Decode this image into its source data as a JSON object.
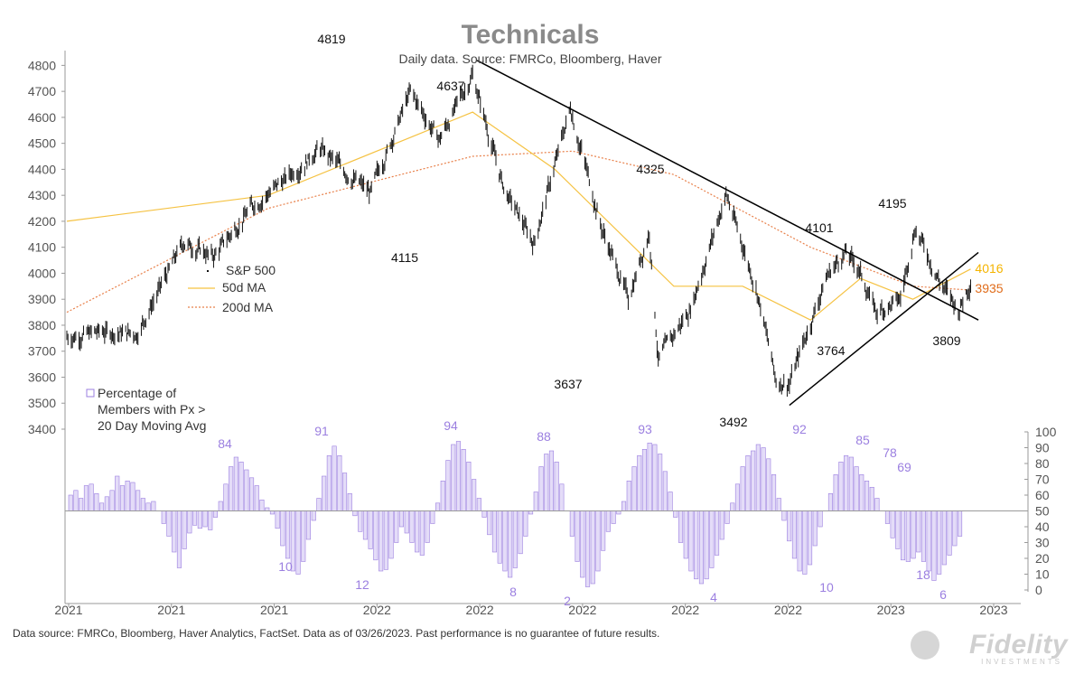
{
  "header": {
    "title": "Technicals",
    "subtitle": "Daily data.  Source: FMRCo, Bloomberg, Haver"
  },
  "footer": {
    "source_note": "Data source: FMRCo, Bloomberg, Haver Analytics, FactSet. Data as of 03/26/2023. Past performance is no guarantee of future results."
  },
  "logo": {
    "name": "Fidelity",
    "tagline": "INVESTMENTS"
  },
  "colors": {
    "price": "#111111",
    "ma50": "#f5c242",
    "ma200": "#e8804a",
    "breadth": "#9b7fe0",
    "trend": "#000000",
    "label_4016": "#f5b400",
    "label_3935": "#e06c1a"
  },
  "chart_data": [
    {
      "type": "line",
      "title": "Technicals",
      "ylim": [
        3400,
        4850
      ],
      "yticks": [
        3400,
        3500,
        3600,
        3700,
        3800,
        3900,
        4000,
        4100,
        4200,
        4300,
        4400,
        4500,
        4600,
        4700,
        4800
      ],
      "x_tick_labels": [
        "2021",
        "2021",
        "2021",
        "2022",
        "2022",
        "2022",
        "2022",
        "2022",
        "2023",
        "2023"
      ],
      "legend": [
        "S&P 500",
        "50d MA",
        "200d MA"
      ],
      "legend_position": "middle-left",
      "series": [
        {
          "name": "S&P 500",
          "x": [
            "2020-12-31",
            "2021-02-01",
            "2021-03-04",
            "2021-04-15",
            "2021-05-12",
            "2021-06-15",
            "2021-07-15",
            "2021-08-15",
            "2021-09-30",
            "2021-11-05",
            "2021-12-01",
            "2021-12-31",
            "2022-01-28",
            "2022-02-24",
            "2022-03-29",
            "2022-04-26",
            "2022-05-20",
            "2022-06-08",
            "2022-06-16",
            "2022-07-15",
            "2022-08-16",
            "2022-09-13",
            "2022-09-30",
            "2022-10-12",
            "2022-11-15",
            "2022-12-01",
            "2022-12-13",
            "2022-12-29",
            "2023-01-20",
            "2023-02-02",
            "2023-02-24",
            "2023-03-13",
            "2023-03-24"
          ],
          "values": [
            3756,
            3774,
            3768,
            4120,
            4063,
            4255,
            4360,
            4480,
            4307,
            4697,
            4513,
            4766,
            4326,
            4115,
            4637,
            4175,
            3901,
            4160,
            3667,
            3863,
            4305,
            3932,
            3585,
            3577,
            3992,
            4080,
            4019,
            3849,
            3898,
            4180,
            3970,
            3855,
            3971
          ]
        },
        {
          "name": "50d MA",
          "x": [
            "2020-12-31",
            "2021-06-30",
            "2021-12-31",
            "2022-03-15",
            "2022-06-30",
            "2022-08-31",
            "2022-10-31",
            "2022-12-15",
            "2023-01-31",
            "2023-03-24"
          ],
          "values": [
            4200,
            4300,
            4620,
            4400,
            3950,
            3950,
            3820,
            3980,
            3900,
            4016
          ]
        },
        {
          "name": "200d MA",
          "x": [
            "2020-12-31",
            "2021-06-30",
            "2021-12-31",
            "2022-03-31",
            "2022-06-30",
            "2022-10-31",
            "2023-01-31",
            "2023-03-24"
          ],
          "values": [
            3850,
            4250,
            4450,
            4470,
            4380,
            4100,
            3950,
            3935
          ]
        }
      ],
      "annotations": [
        "4819",
        "4637",
        "4325",
        "4101",
        "4195",
        "4115",
        "3637",
        "3492",
        "3764",
        "3809",
        "4016",
        "3935"
      ],
      "trendlines": [
        {
          "from": {
            "x": "2022-01-04",
            "y": 4819
          },
          "to": {
            "x": "2023-03-31",
            "y": 3820
          }
        },
        {
          "from": {
            "x": "2022-10-12",
            "y": 3492
          },
          "to": {
            "x": "2023-03-31",
            "y": 4080
          }
        }
      ]
    },
    {
      "type": "bar",
      "title": "",
      "legend": [
        "Percentage of Members with Px > 20 Day Moving Avg"
      ],
      "legend_label_lines": [
        "Percentage of",
        "Members with Px >",
        "20 Day Moving Avg"
      ],
      "baseline": 50,
      "ylim": [
        0,
        100
      ],
      "yticks": [
        0,
        10,
        20,
        30,
        40,
        50,
        60,
        70,
        80,
        90,
        100
      ],
      "bar_labels": [
        "84",
        "91",
        "94",
        "88",
        "93",
        "92",
        "85",
        "78",
        "69",
        "10",
        "12",
        "8",
        "2",
        "4",
        "10",
        "18",
        "6"
      ],
      "series": [
        {
          "name": "Percentage of Members with Px > 20 Day Moving Avg",
          "values": [
            60,
            63,
            58,
            66,
            67,
            61,
            55,
            59,
            63,
            72,
            66,
            69,
            68,
            63,
            58,
            55,
            56,
            50,
            42,
            34,
            24,
            14,
            26,
            36,
            41,
            39,
            40,
            38,
            46,
            56,
            67,
            78,
            84,
            81,
            76,
            71,
            66,
            57,
            52,
            48,
            39,
            28,
            20,
            12,
            10,
            18,
            32,
            44,
            58,
            72,
            85,
            91,
            85,
            74,
            61,
            47,
            37,
            32,
            26,
            19,
            12,
            13,
            20,
            30,
            40,
            36,
            30,
            24,
            22,
            30,
            42,
            55,
            69,
            82,
            92,
            94,
            89,
            81,
            70,
            58,
            46,
            35,
            24,
            17,
            12,
            8,
            14,
            23,
            34,
            48,
            62,
            78,
            86,
            88,
            81,
            67,
            50,
            34,
            18,
            8,
            2,
            4,
            12,
            25,
            37,
            42,
            48,
            56,
            69,
            78,
            85,
            89,
            93,
            92,
            86,
            75,
            62,
            46,
            30,
            20,
            12,
            7,
            4,
            7,
            14,
            22,
            32,
            42,
            55,
            67,
            78,
            85,
            88,
            92,
            90,
            83,
            73,
            58,
            44,
            31,
            20,
            12,
            10,
            16,
            28,
            40,
            50,
            61,
            73,
            81,
            85,
            84,
            78,
            73,
            69,
            65,
            58,
            50,
            42,
            33,
            26,
            19,
            18,
            20,
            24,
            18,
            12,
            6,
            10,
            16,
            22,
            28,
            34
          ]
        }
      ]
    }
  ]
}
